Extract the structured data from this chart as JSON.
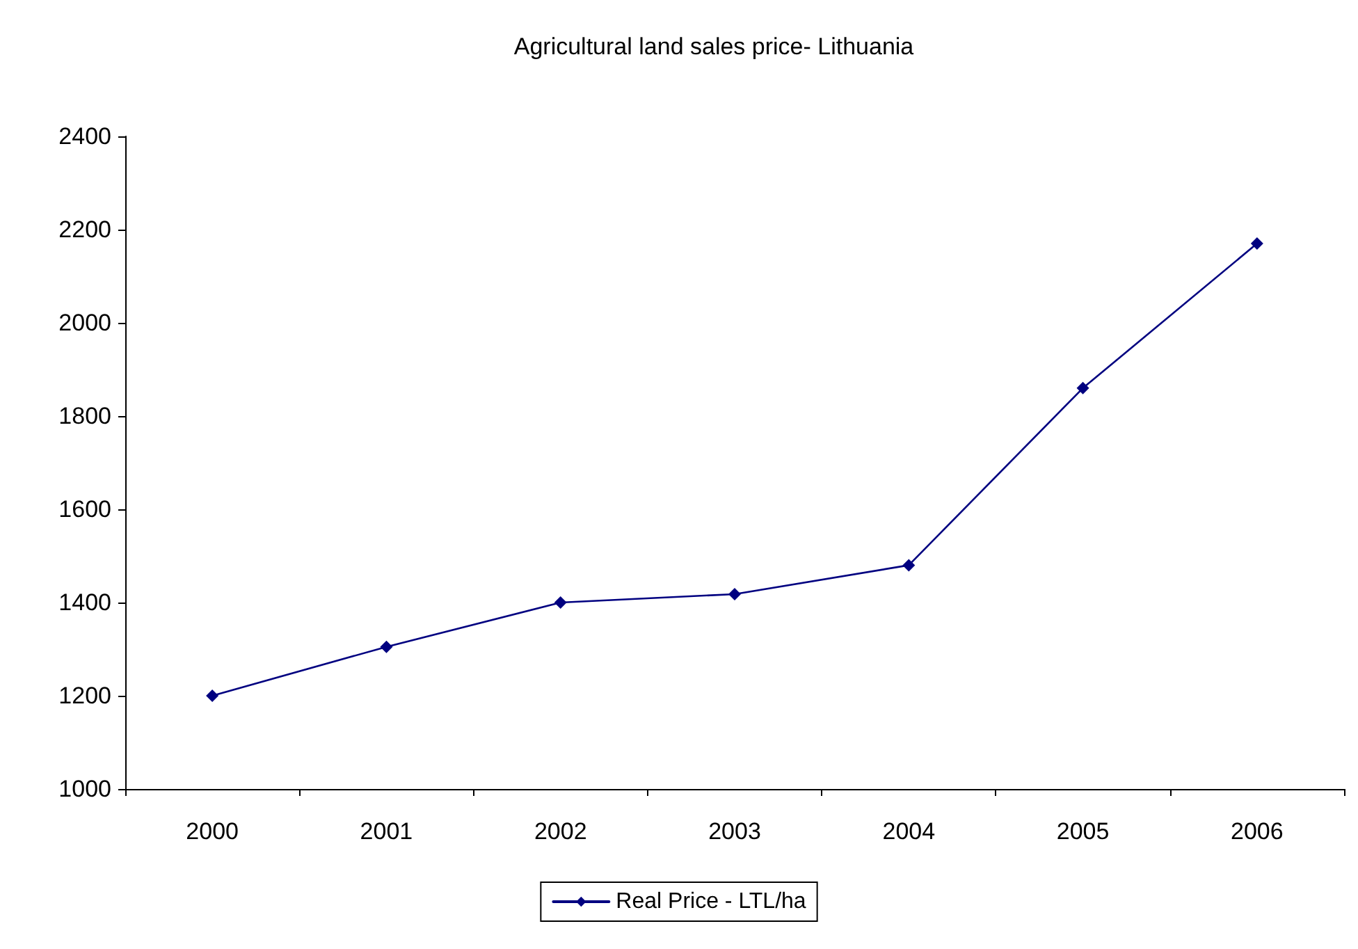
{
  "chart_data": {
    "type": "line",
    "title": "Agricultural land sales price- Lithuania",
    "categories": [
      "2000",
      "2001",
      "2002",
      "2003",
      "2004",
      "2005",
      "2006"
    ],
    "series": [
      {
        "name": "Real Price - LTL/ha",
        "color": "#000080",
        "values": [
          1200,
          1305,
          1400,
          1418,
          1480,
          1860,
          2170
        ]
      }
    ],
    "ylim": [
      1000,
      2400
    ],
    "yticks": [
      1000,
      1200,
      1400,
      1600,
      1800,
      2000,
      2200,
      2400
    ],
    "grid": false,
    "legend": "bottom",
    "marker": "diamond",
    "line_style": "solid"
  }
}
